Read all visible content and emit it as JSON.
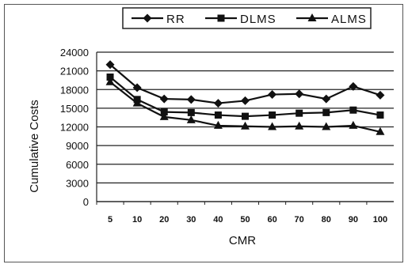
{
  "chart_data": {
    "type": "line",
    "title": "",
    "xlabel": "CMR",
    "ylabel": "Cumulative Costs",
    "categories": [
      "5",
      "10",
      "20",
      "30",
      "40",
      "50",
      "60",
      "70",
      "80",
      "90",
      "100"
    ],
    "ylim": [
      0,
      24000
    ],
    "yticks": [
      "0",
      "3000",
      "6000",
      "9000",
      "12000",
      "15000",
      "18000",
      "21000",
      "24000"
    ],
    "grid": true,
    "legend_position": "top",
    "series": [
      {
        "name": "RR",
        "marker": "diamond",
        "values": [
          22000,
          18300,
          16500,
          16400,
          15800,
          16200,
          17200,
          17300,
          16500,
          18500,
          17100
        ]
      },
      {
        "name": "DLMS",
        "marker": "square",
        "values": [
          20000,
          16400,
          14400,
          14300,
          13900,
          13700,
          13900,
          14200,
          14300,
          14700,
          13900
        ]
      },
      {
        "name": "ALMS",
        "marker": "triangle",
        "values": [
          19200,
          15800,
          13600,
          13100,
          12200,
          12100,
          12000,
          12100,
          12000,
          12200,
          11200
        ]
      }
    ],
    "line_color": "#111111"
  }
}
